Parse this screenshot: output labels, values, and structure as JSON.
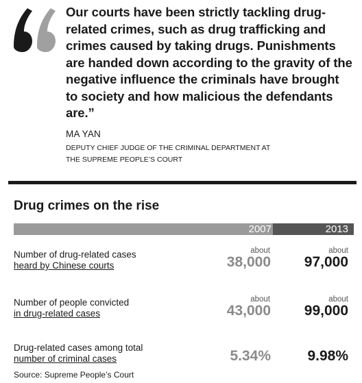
{
  "quote": {
    "text": "Our courts have been strictly tackling drug-related crimes, such as drug trafficking and crimes caused by taking drugs. Punishments are handed down according to the gravity of the negative influence the criminals have brought to society and how malicious the defendants are.”",
    "speaker": "MA YAN",
    "speaker_title_line1": "DEPUTY CHIEF JUDGE OF THE CRIMINAL DEPARTMENT AT",
    "speaker_title_line2": "THE SUPREME PEOPLE’S COURT",
    "quote_mark_colors": {
      "left": "#1a1a1a",
      "right": "#a0a0a0"
    }
  },
  "table": {
    "title": "Drug crimes on the rise",
    "col_2007": "2007",
    "col_2013": "2013",
    "rows": [
      {
        "label_line1": "Number of drug-related cases",
        "label_line2": "heard by Chinese courts",
        "about_2007": "about",
        "value_2007": "38,000",
        "about_2013": "about",
        "value_2013": "97,000"
      },
      {
        "label_line1": "Number of people convicted",
        "label_line2": "in drug-related cases",
        "about_2007": "about",
        "value_2007": "43,000",
        "about_2013": "about",
        "value_2013": "99,000"
      },
      {
        "label_line1": "Drug-related cases among total",
        "label_line2": "number of criminal cases",
        "value_2007": "5.34%",
        "value_2013": "9.98%"
      }
    ],
    "source": "Source: Supreme People’s Court"
  }
}
